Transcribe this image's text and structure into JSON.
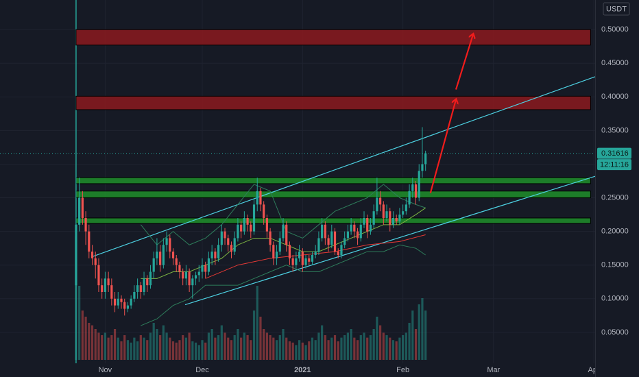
{
  "chart_data": {
    "type": "candlestick",
    "currency": "USDT",
    "last_price": 0.31616,
    "countdown": "12:11:16",
    "up_color": "#26a69a",
    "down_color": "#ef5350",
    "xlim": [
      -23.5,
      160.4
    ],
    "ylim": [
      0.004,
      0.544
    ],
    "vlim": [
      0,
      100
    ],
    "grid": true,
    "xticks": [
      {
        "value": 9,
        "label": "Nov"
      },
      {
        "value": 39,
        "label": "Dec"
      },
      {
        "value": 70,
        "label": "2021"
      },
      {
        "value": 101,
        "label": "Feb"
      },
      {
        "value": 129,
        "label": "Mar"
      },
      {
        "value": 160,
        "label": "Apr"
      }
    ],
    "yticks": [
      {
        "value": 0.5,
        "label": "0.50000"
      },
      {
        "value": 0.45,
        "label": "0.45000"
      },
      {
        "value": 0.4,
        "label": "0.40000"
      },
      {
        "value": 0.35,
        "label": "0.35000"
      },
      {
        "value": 0.3,
        "label": "0.30000"
      },
      {
        "value": 0.25,
        "label": "0.25000"
      },
      {
        "value": 0.2,
        "label": "0.20000"
      },
      {
        "value": 0.15,
        "label": "0.15000"
      },
      {
        "value": 0.1,
        "label": "0.10000"
      },
      {
        "value": 0.05,
        "label": "0.05000"
      }
    ],
    "open": [
      0.12,
      0.21,
      0.25,
      0.22,
      0.2,
      0.17,
      0.16,
      0.15,
      0.12,
      0.11,
      0.13,
      0.12,
      0.1,
      0.09,
      0.1,
      0.095,
      0.085,
      0.09,
      0.1,
      0.11,
      0.12,
      0.11,
      0.13,
      0.12,
      0.14,
      0.16,
      0.17,
      0.15,
      0.18,
      0.19,
      0.17,
      0.16,
      0.15,
      0.14,
      0.13,
      0.14,
      0.12,
      0.13,
      0.135,
      0.14,
      0.15,
      0.14,
      0.16,
      0.17,
      0.16,
      0.18,
      0.2,
      0.19,
      0.18,
      0.17,
      0.19,
      0.21,
      0.2,
      0.22,
      0.21,
      0.2,
      0.24,
      0.26,
      0.24,
      0.22,
      0.2,
      0.18,
      0.16,
      0.17,
      0.19,
      0.21,
      0.18,
      0.16,
      0.15,
      0.16,
      0.17,
      0.15,
      0.16,
      0.155,
      0.165,
      0.17,
      0.19,
      0.21,
      0.19,
      0.18,
      0.2,
      0.17,
      0.165,
      0.18,
      0.19,
      0.2,
      0.21,
      0.2,
      0.19,
      0.21,
      0.22,
      0.2,
      0.21,
      0.23,
      0.25,
      0.24,
      0.22,
      0.23,
      0.21,
      0.22,
      0.215,
      0.225,
      0.23,
      0.24,
      0.26,
      0.27,
      0.25,
      0.29,
      0.3
    ],
    "high": [
      0.3,
      0.28,
      0.26,
      0.23,
      0.21,
      0.18,
      0.17,
      0.16,
      0.13,
      0.14,
      0.14,
      0.13,
      0.11,
      0.11,
      0.105,
      0.1,
      0.095,
      0.105,
      0.12,
      0.13,
      0.125,
      0.14,
      0.135,
      0.15,
      0.17,
      0.19,
      0.18,
      0.19,
      0.2,
      0.195,
      0.175,
      0.165,
      0.155,
      0.145,
      0.15,
      0.145,
      0.135,
      0.14,
      0.15,
      0.16,
      0.155,
      0.17,
      0.18,
      0.175,
      0.19,
      0.21,
      0.205,
      0.195,
      0.185,
      0.2,
      0.22,
      0.215,
      0.23,
      0.225,
      0.215,
      0.25,
      0.28,
      0.265,
      0.245,
      0.225,
      0.205,
      0.185,
      0.18,
      0.2,
      0.22,
      0.215,
      0.185,
      0.165,
      0.17,
      0.18,
      0.175,
      0.165,
      0.165,
      0.17,
      0.18,
      0.2,
      0.22,
      0.215,
      0.195,
      0.21,
      0.205,
      0.175,
      0.185,
      0.2,
      0.21,
      0.22,
      0.215,
      0.205,
      0.22,
      0.23,
      0.225,
      0.22,
      0.24,
      0.28,
      0.26,
      0.245,
      0.24,
      0.235,
      0.23,
      0.225,
      0.235,
      0.24,
      0.25,
      0.27,
      0.28,
      0.275,
      0.3,
      0.355,
      0.32
    ],
    "low": [
      0.1,
      0.2,
      0.21,
      0.18,
      0.16,
      0.15,
      0.13,
      0.11,
      0.1,
      0.1,
      0.11,
      0.09,
      0.08,
      0.085,
      0.085,
      0.075,
      0.08,
      0.085,
      0.095,
      0.1,
      0.1,
      0.105,
      0.11,
      0.115,
      0.13,
      0.15,
      0.14,
      0.145,
      0.17,
      0.16,
      0.15,
      0.14,
      0.13,
      0.12,
      0.12,
      0.11,
      0.1,
      0.12,
      0.125,
      0.13,
      0.13,
      0.135,
      0.15,
      0.15,
      0.155,
      0.17,
      0.18,
      0.17,
      0.16,
      0.165,
      0.185,
      0.19,
      0.195,
      0.2,
      0.19,
      0.195,
      0.23,
      0.23,
      0.21,
      0.19,
      0.17,
      0.15,
      0.15,
      0.165,
      0.185,
      0.17,
      0.15,
      0.14,
      0.145,
      0.155,
      0.14,
      0.145,
      0.15,
      0.15,
      0.16,
      0.165,
      0.185,
      0.18,
      0.17,
      0.175,
      0.165,
      0.16,
      0.16,
      0.175,
      0.185,
      0.195,
      0.19,
      0.18,
      0.185,
      0.205,
      0.19,
      0.195,
      0.205,
      0.225,
      0.23,
      0.21,
      0.215,
      0.2,
      0.205,
      0.21,
      0.21,
      0.22,
      0.225,
      0.235,
      0.25,
      0.24,
      0.245,
      0.28,
      0.29
    ],
    "close": [
      0.21,
      0.25,
      0.22,
      0.2,
      0.17,
      0.16,
      0.15,
      0.12,
      0.11,
      0.13,
      0.12,
      0.1,
      0.09,
      0.1,
      0.095,
      0.085,
      0.09,
      0.1,
      0.11,
      0.12,
      0.11,
      0.13,
      0.12,
      0.14,
      0.16,
      0.17,
      0.15,
      0.18,
      0.19,
      0.17,
      0.16,
      0.15,
      0.14,
      0.13,
      0.14,
      0.12,
      0.13,
      0.135,
      0.14,
      0.15,
      0.14,
      0.16,
      0.17,
      0.16,
      0.18,
      0.2,
      0.19,
      0.18,
      0.17,
      0.19,
      0.21,
      0.2,
      0.22,
      0.21,
      0.2,
      0.24,
      0.26,
      0.24,
      0.22,
      0.2,
      0.18,
      0.16,
      0.17,
      0.19,
      0.21,
      0.18,
      0.16,
      0.15,
      0.16,
      0.17,
      0.15,
      0.16,
      0.155,
      0.165,
      0.17,
      0.19,
      0.21,
      0.19,
      0.18,
      0.2,
      0.17,
      0.165,
      0.18,
      0.19,
      0.2,
      0.21,
      0.2,
      0.19,
      0.21,
      0.22,
      0.2,
      0.21,
      0.23,
      0.25,
      0.24,
      0.22,
      0.23,
      0.21,
      0.22,
      0.215,
      0.225,
      0.23,
      0.24,
      0.26,
      0.27,
      0.25,
      0.29,
      0.3,
      0.31616
    ],
    "volume": [
      100,
      60,
      40,
      35,
      30,
      28,
      25,
      22,
      20,
      22,
      18,
      20,
      25,
      18,
      15,
      20,
      16,
      14,
      18,
      15,
      20,
      18,
      16,
      22,
      30,
      25,
      20,
      28,
      22,
      18,
      15,
      14,
      16,
      20,
      18,
      22,
      15,
      14,
      12,
      16,
      14,
      22,
      25,
      18,
      20,
      28,
      22,
      18,
      16,
      20,
      25,
      18,
      22,
      20,
      16,
      40,
      60,
      35,
      25,
      22,
      20,
      18,
      16,
      20,
      25,
      18,
      15,
      14,
      12,
      16,
      14,
      12,
      15,
      18,
      16,
      22,
      28,
      20,
      16,
      18,
      20,
      15,
      18,
      20,
      22,
      25,
      18,
      16,
      20,
      22,
      18,
      20,
      25,
      35,
      28,
      22,
      20,
      18,
      16,
      15,
      18,
      20,
      22,
      30,
      40,
      25,
      45,
      50,
      40
    ],
    "zones": [
      {
        "x": [
          0,
          159
        ],
        "y": [
          0.477,
          0.5
        ],
        "color": "#8b1a1f"
      },
      {
        "x": [
          0,
          159
        ],
        "y": [
          0.381,
          0.401
        ],
        "color": "#8b1a1f"
      },
      {
        "x": [
          0,
          159
        ],
        "y": [
          0.271,
          0.28
        ],
        "color": "#1e8f2a"
      },
      {
        "x": [
          0,
          159
        ],
        "y": [
          0.25,
          0.26
        ],
        "color": "#1e8f2a"
      },
      {
        "x": [
          0,
          159
        ],
        "y": [
          0.212,
          0.22
        ],
        "color": "#1e8f2a"
      }
    ],
    "lines": [
      {
        "x": [
          4.7,
          160.4
        ],
        "y": [
          0.162,
          0.43
        ],
        "color": "#4dd0e1",
        "width": 1.2
      },
      {
        "x": [
          33.7,
          160.4
        ],
        "y": [
          0.091,
          0.282
        ],
        "color": "#4dd0e1",
        "width": 1.2
      },
      {
        "x": [
          20,
          25,
          30,
          35,
          40,
          45,
          50,
          55,
          60,
          65,
          70,
          75,
          80,
          85,
          90,
          95,
          100,
          105,
          108
        ],
        "y": [
          0.21,
          0.18,
          0.2,
          0.18,
          0.19,
          0.21,
          0.24,
          0.27,
          0.26,
          0.2,
          0.19,
          0.21,
          0.23,
          0.24,
          0.25,
          0.27,
          0.25,
          0.24,
          0.235
        ],
        "color": "#2e7d5b",
        "width": 1
      },
      {
        "x": [
          20,
          25,
          30,
          35,
          40,
          45,
          50,
          55,
          60,
          65,
          70,
          75,
          80,
          85,
          90,
          95,
          100,
          105,
          108
        ],
        "y": [
          0.06,
          0.07,
          0.09,
          0.1,
          0.12,
          0.12,
          0.12,
          0.13,
          0.14,
          0.15,
          0.14,
          0.14,
          0.15,
          0.16,
          0.17,
          0.17,
          0.18,
          0.175,
          0.165
        ],
        "color": "#2e7d5b",
        "width": 1
      },
      {
        "x": [
          20,
          25,
          30,
          35,
          40,
          45,
          50,
          55,
          60,
          65,
          70,
          75,
          80,
          85,
          90,
          95,
          100,
          105,
          108
        ],
        "y": [
          0.13,
          0.13,
          0.14,
          0.14,
          0.15,
          0.16,
          0.18,
          0.19,
          0.19,
          0.18,
          0.17,
          0.17,
          0.18,
          0.19,
          0.2,
          0.21,
          0.21,
          0.225,
          0.235
        ],
        "color": "#7cb342",
        "width": 1
      },
      {
        "x": [
          40,
          50,
          60,
          70,
          80,
          90,
          100,
          108
        ],
        "y": [
          0.13,
          0.15,
          0.16,
          0.165,
          0.17,
          0.18,
          0.185,
          0.195
        ],
        "color": "#e53935",
        "width": 1
      }
    ],
    "arrows": [
      {
        "x": [
          109.5,
          117.4
        ],
        "y": [
          0.257,
          0.396
        ],
        "color": "#f21c1c"
      },
      {
        "x": [
          117.4,
          122.7
        ],
        "y": [
          0.411,
          0.493
        ],
        "color": "#f21c1c"
      }
    ]
  }
}
